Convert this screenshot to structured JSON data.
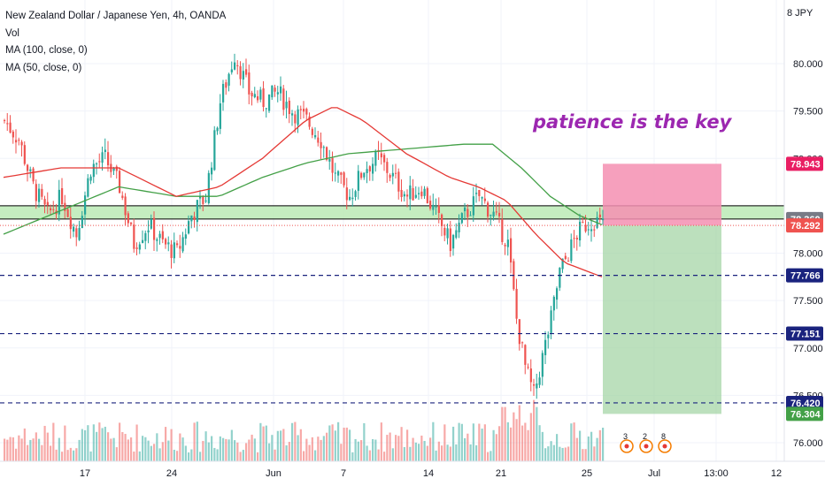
{
  "legend": {
    "title": "New Zealand Dollar / Japanese Yen, 4h, OANDA",
    "vol": "Vol",
    "ma100": "MA (100, close, 0)",
    "ma50": "MA (50, close, 0)"
  },
  "annotation": "patience is the key",
  "currency_label": "8 JPY",
  "colors": {
    "up": "#26a69a",
    "down": "#ef5350",
    "ma100": "#43a047",
    "ma50": "#e53935",
    "zone": "#b7e8b0",
    "stop": "#f48fb1",
    "target": "#a5d6a7",
    "level": "#1a237e",
    "note": "#9c27b0"
  },
  "chart_data": {
    "type": "candlestick",
    "symbol": "NZDJPY",
    "timeframe": "4h",
    "y_axis_ticks": [
      "80.000",
      "79.500",
      "79.000",
      "78.000",
      "77.500",
      "77.000",
      "76.500",
      "76.000"
    ],
    "x_axis_ticks": [
      "17",
      "24",
      "Jun",
      "7",
      "14",
      "21",
      "25",
      "Jul",
      "13:00",
      "12"
    ],
    "price_tags": [
      {
        "value": "78.943",
        "bg": "#e91e63"
      },
      {
        "value": "78.360",
        "bg": "#787b86"
      },
      {
        "value": "78.292",
        "bg": "#ef5350"
      },
      {
        "value": "77.766",
        "bg": "#1a237e"
      },
      {
        "value": "77.151",
        "bg": "#1a237e"
      },
      {
        "value": "76.420",
        "bg": "#1a237e"
      },
      {
        "value": "76.304",
        "bg": "#43a047"
      }
    ],
    "horizontal_levels": [
      77.766,
      77.151,
      76.42
    ],
    "resistance_zone": [
      78.36,
      78.5
    ],
    "position": {
      "entry": 78.292,
      "stop": 78.943,
      "target": 76.304
    },
    "events": [
      "3",
      "2",
      "8"
    ],
    "close_keypoints": [
      [
        0,
        79.4
      ],
      [
        5,
        79.2
      ],
      [
        10,
        78.7
      ],
      [
        15,
        78.4
      ],
      [
        20,
        78.6
      ],
      [
        25,
        78.2
      ],
      [
        30,
        78.9
      ],
      [
        35,
        79.0
      ],
      [
        40,
        78.7
      ],
      [
        45,
        78.1
      ],
      [
        50,
        78.3
      ],
      [
        55,
        78.1
      ],
      [
        60,
        78.0
      ],
      [
        65,
        78.4
      ],
      [
        70,
        78.6
      ],
      [
        75,
        79.6
      ],
      [
        80,
        80.1
      ],
      [
        85,
        79.7
      ],
      [
        90,
        79.6
      ],
      [
        95,
        79.7
      ],
      [
        100,
        79.5
      ],
      [
        105,
        79.4
      ],
      [
        110,
        79.2
      ],
      [
        115,
        78.8
      ],
      [
        120,
        78.6
      ],
      [
        125,
        78.9
      ],
      [
        130,
        79.0
      ],
      [
        135,
        78.8
      ],
      [
        140,
        78.6
      ],
      [
        145,
        78.7
      ],
      [
        150,
        78.4
      ],
      [
        155,
        78.1
      ],
      [
        160,
        78.4
      ],
      [
        165,
        78.6
      ],
      [
        170,
        78.4
      ],
      [
        175,
        78.1
      ],
      [
        178,
        77.3
      ],
      [
        181,
        76.8
      ],
      [
        184,
        76.5
      ],
      [
        187,
        76.9
      ],
      [
        190,
        77.3
      ],
      [
        193,
        77.8
      ],
      [
        196,
        78.0
      ],
      [
        199,
        78.2
      ],
      [
        202,
        78.3
      ],
      [
        205,
        78.35
      ],
      [
        208,
        78.3
      ]
    ],
    "ma50_keypoints": [
      [
        0,
        78.8
      ],
      [
        20,
        78.9
      ],
      [
        40,
        78.9
      ],
      [
        60,
        78.6
      ],
      [
        75,
        78.7
      ],
      [
        90,
        79.0
      ],
      [
        105,
        79.4
      ],
      [
        115,
        79.55
      ],
      [
        125,
        79.4
      ],
      [
        140,
        79.05
      ],
      [
        155,
        78.8
      ],
      [
        165,
        78.7
      ],
      [
        175,
        78.55
      ],
      [
        185,
        78.2
      ],
      [
        195,
        77.9
      ],
      [
        208,
        77.75
      ]
    ],
    "ma100_keypoints": [
      [
        0,
        78.2
      ],
      [
        20,
        78.45
      ],
      [
        40,
        78.7
      ],
      [
        60,
        78.6
      ],
      [
        75,
        78.6
      ],
      [
        90,
        78.8
      ],
      [
        105,
        78.95
      ],
      [
        120,
        79.05
      ],
      [
        140,
        79.1
      ],
      [
        160,
        79.15
      ],
      [
        170,
        79.15
      ],
      [
        180,
        78.9
      ],
      [
        190,
        78.6
      ],
      [
        200,
        78.4
      ],
      [
        208,
        78.3
      ]
    ]
  }
}
